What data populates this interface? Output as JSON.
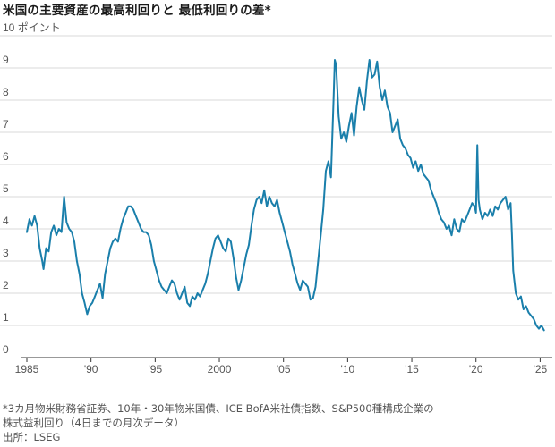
{
  "title": "米国の主要資産の最高利回りと 最低利回りの差*",
  "footnote_lines": [
    "*3カ月物米財務省証券、10年・30年物米国債、ICE BofA米社債指数、S&P500種構成企業の",
    "株式益利回り（4日までの月次データ）"
  ],
  "source": "出所：LSEG",
  "colors": {
    "line": "#1a7fab",
    "grid": "#d9d9d9",
    "axis": "#333333",
    "text": "#555555"
  },
  "chart_data": {
    "type": "line",
    "title": "米国の主要資産の最高利回りと 最低利回りの差*",
    "ylabel": "",
    "y_unit_label": "10 ポイント",
    "ylim": [
      0,
      10
    ],
    "xlim": [
      1985,
      2025.6
    ],
    "yticks": [
      0,
      1,
      2,
      3,
      4,
      5,
      6,
      7,
      8,
      9,
      10
    ],
    "ytick_labels": [
      "0",
      "1",
      "2",
      "3",
      "4",
      "5",
      "6",
      "7",
      "8",
      "9",
      "10 ポイント"
    ],
    "xticks": [
      1985,
      1990,
      1995,
      2000,
      2005,
      2010,
      2015,
      2020,
      2025
    ],
    "xtick_labels": [
      "1985",
      "'90",
      "'95",
      "2000",
      "'05",
      "'10",
      "'15",
      "'20",
      "'25"
    ],
    "grid": "horizontal",
    "series": [
      {
        "points": [
          [
            1985.0,
            3.9
          ],
          [
            1985.2,
            4.3
          ],
          [
            1985.4,
            4.1
          ],
          [
            1985.6,
            4.4
          ],
          [
            1985.8,
            4.1
          ],
          [
            1986.0,
            3.4
          ],
          [
            1986.2,
            3.0
          ],
          [
            1986.3,
            2.75
          ],
          [
            1986.5,
            3.4
          ],
          [
            1986.7,
            3.3
          ],
          [
            1986.9,
            3.9
          ],
          [
            1987.1,
            4.1
          ],
          [
            1987.3,
            3.8
          ],
          [
            1987.5,
            4.0
          ],
          [
            1987.7,
            3.9
          ],
          [
            1987.9,
            5.0
          ],
          [
            1988.1,
            4.2
          ],
          [
            1988.3,
            4.0
          ],
          [
            1988.5,
            3.9
          ],
          [
            1988.7,
            3.6
          ],
          [
            1988.9,
            3.0
          ],
          [
            1989.1,
            2.6
          ],
          [
            1989.3,
            2.0
          ],
          [
            1989.5,
            1.7
          ],
          [
            1989.7,
            1.35
          ],
          [
            1989.9,
            1.6
          ],
          [
            1990.1,
            1.7
          ],
          [
            1990.3,
            1.9
          ],
          [
            1990.5,
            2.1
          ],
          [
            1990.7,
            2.3
          ],
          [
            1990.9,
            1.85
          ],
          [
            1991.1,
            2.6
          ],
          [
            1991.3,
            3.0
          ],
          [
            1991.5,
            3.4
          ],
          [
            1991.7,
            3.6
          ],
          [
            1991.9,
            3.7
          ],
          [
            1992.1,
            3.6
          ],
          [
            1992.3,
            4.0
          ],
          [
            1992.5,
            4.3
          ],
          [
            1992.7,
            4.5
          ],
          [
            1992.9,
            4.7
          ],
          [
            1993.1,
            4.7
          ],
          [
            1993.3,
            4.6
          ],
          [
            1993.5,
            4.4
          ],
          [
            1993.7,
            4.2
          ],
          [
            1993.9,
            4.0
          ],
          [
            1994.1,
            3.9
          ],
          [
            1994.3,
            3.9
          ],
          [
            1994.5,
            3.8
          ],
          [
            1994.7,
            3.5
          ],
          [
            1994.9,
            3.0
          ],
          [
            1995.1,
            2.7
          ],
          [
            1995.3,
            2.4
          ],
          [
            1995.5,
            2.2
          ],
          [
            1995.7,
            2.1
          ],
          [
            1995.9,
            2.0
          ],
          [
            1996.1,
            2.2
          ],
          [
            1996.3,
            2.4
          ],
          [
            1996.5,
            2.3
          ],
          [
            1996.7,
            2.0
          ],
          [
            1996.9,
            1.8
          ],
          [
            1997.1,
            2.0
          ],
          [
            1997.3,
            2.2
          ],
          [
            1997.5,
            1.7
          ],
          [
            1997.7,
            1.6
          ],
          [
            1997.9,
            1.9
          ],
          [
            1998.1,
            1.8
          ],
          [
            1998.3,
            2.0
          ],
          [
            1998.5,
            1.9
          ],
          [
            1998.7,
            2.1
          ],
          [
            1998.9,
            2.3
          ],
          [
            1999.1,
            2.6
          ],
          [
            1999.3,
            3.0
          ],
          [
            1999.5,
            3.4
          ],
          [
            1999.7,
            3.7
          ],
          [
            1999.9,
            3.8
          ],
          [
            2000.1,
            3.6
          ],
          [
            2000.3,
            3.4
          ],
          [
            2000.5,
            3.3
          ],
          [
            2000.7,
            3.7
          ],
          [
            2000.9,
            3.6
          ],
          [
            2001.1,
            3.1
          ],
          [
            2001.3,
            2.5
          ],
          [
            2001.5,
            2.1
          ],
          [
            2001.7,
            2.4
          ],
          [
            2001.9,
            2.8
          ],
          [
            2002.1,
            3.2
          ],
          [
            2002.3,
            3.5
          ],
          [
            2002.5,
            4.1
          ],
          [
            2002.7,
            4.6
          ],
          [
            2002.9,
            4.9
          ],
          [
            2003.1,
            5.0
          ],
          [
            2003.3,
            4.8
          ],
          [
            2003.5,
            5.2
          ],
          [
            2003.7,
            4.7
          ],
          [
            2003.9,
            5.0
          ],
          [
            2004.1,
            4.8
          ],
          [
            2004.3,
            4.7
          ],
          [
            2004.5,
            4.9
          ],
          [
            2004.7,
            4.5
          ],
          [
            2004.9,
            4.2
          ],
          [
            2005.1,
            3.9
          ],
          [
            2005.3,
            3.6
          ],
          [
            2005.5,
            3.3
          ],
          [
            2005.7,
            2.9
          ],
          [
            2005.9,
            2.6
          ],
          [
            2006.1,
            2.3
          ],
          [
            2006.3,
            2.1
          ],
          [
            2006.5,
            2.4
          ],
          [
            2006.7,
            2.3
          ],
          [
            2006.9,
            2.2
          ],
          [
            2007.1,
            1.8
          ],
          [
            2007.3,
            1.85
          ],
          [
            2007.5,
            2.2
          ],
          [
            2007.7,
            3.0
          ],
          [
            2007.9,
            3.8
          ],
          [
            2008.1,
            4.6
          ],
          [
            2008.3,
            5.8
          ],
          [
            2008.5,
            6.1
          ],
          [
            2008.7,
            5.6
          ],
          [
            2008.9,
            8.0
          ],
          [
            2009.0,
            9.25
          ],
          [
            2009.1,
            9.1
          ],
          [
            2009.3,
            7.5
          ],
          [
            2009.5,
            6.8
          ],
          [
            2009.7,
            7.0
          ],
          [
            2009.9,
            6.7
          ],
          [
            2010.1,
            7.2
          ],
          [
            2010.3,
            7.6
          ],
          [
            2010.5,
            6.9
          ],
          [
            2010.7,
            7.8
          ],
          [
            2010.9,
            8.4
          ],
          [
            2011.1,
            8.0
          ],
          [
            2011.3,
            7.7
          ],
          [
            2011.5,
            8.6
          ],
          [
            2011.7,
            9.25
          ],
          [
            2011.9,
            8.7
          ],
          [
            2012.1,
            8.8
          ],
          [
            2012.3,
            9.2
          ],
          [
            2012.5,
            8.4
          ],
          [
            2012.7,
            8.0
          ],
          [
            2012.9,
            8.3
          ],
          [
            2013.1,
            7.8
          ],
          [
            2013.3,
            7.6
          ],
          [
            2013.5,
            7.0
          ],
          [
            2013.7,
            7.2
          ],
          [
            2013.9,
            7.4
          ],
          [
            2014.1,
            6.8
          ],
          [
            2014.3,
            6.6
          ],
          [
            2014.5,
            6.5
          ],
          [
            2014.7,
            6.3
          ],
          [
            2014.9,
            6.2
          ],
          [
            2015.1,
            5.9
          ],
          [
            2015.3,
            6.1
          ],
          [
            2015.5,
            5.8
          ],
          [
            2015.7,
            6.0
          ],
          [
            2015.9,
            5.7
          ],
          [
            2016.1,
            5.6
          ],
          [
            2016.3,
            5.5
          ],
          [
            2016.5,
            5.2
          ],
          [
            2016.7,
            5.0
          ],
          [
            2016.9,
            4.8
          ],
          [
            2017.1,
            4.5
          ],
          [
            2017.3,
            4.3
          ],
          [
            2017.5,
            4.2
          ],
          [
            2017.7,
            4.0
          ],
          [
            2017.9,
            4.1
          ],
          [
            2018.1,
            3.8
          ],
          [
            2018.3,
            4.3
          ],
          [
            2018.5,
            4.0
          ],
          [
            2018.7,
            3.9
          ],
          [
            2018.9,
            4.3
          ],
          [
            2019.1,
            4.2
          ],
          [
            2019.3,
            4.4
          ],
          [
            2019.5,
            4.6
          ],
          [
            2019.7,
            4.8
          ],
          [
            2019.9,
            4.7
          ],
          [
            2020.0,
            4.5
          ],
          [
            2020.1,
            6.6
          ],
          [
            2020.2,
            4.9
          ],
          [
            2020.3,
            4.6
          ],
          [
            2020.5,
            4.3
          ],
          [
            2020.7,
            4.5
          ],
          [
            2020.9,
            4.4
          ],
          [
            2021.1,
            4.6
          ],
          [
            2021.3,
            4.4
          ],
          [
            2021.5,
            4.7
          ],
          [
            2021.7,
            4.6
          ],
          [
            2021.9,
            4.8
          ],
          [
            2022.1,
            4.9
          ],
          [
            2022.3,
            5.0
          ],
          [
            2022.5,
            4.6
          ],
          [
            2022.7,
            4.8
          ],
          [
            2022.8,
            3.8
          ],
          [
            2022.9,
            2.7
          ],
          [
            2023.1,
            2.0
          ],
          [
            2023.3,
            1.8
          ],
          [
            2023.5,
            1.9
          ],
          [
            2023.7,
            1.5
          ],
          [
            2023.9,
            1.6
          ],
          [
            2024.1,
            1.4
          ],
          [
            2024.3,
            1.3
          ],
          [
            2024.5,
            1.2
          ],
          [
            2024.7,
            1.0
          ],
          [
            2024.9,
            0.9
          ],
          [
            2025.1,
            1.0
          ],
          [
            2025.3,
            0.85
          ]
        ]
      }
    ]
  }
}
